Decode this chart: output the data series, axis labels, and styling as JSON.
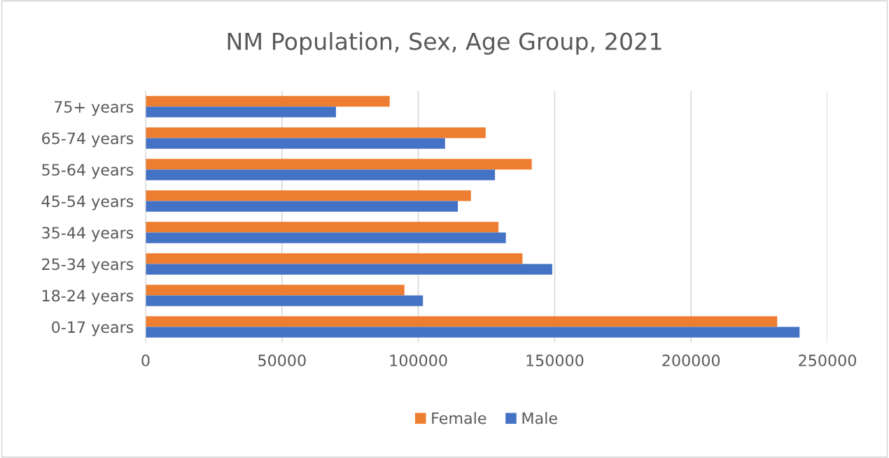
{
  "chart_data": {
    "type": "bar",
    "orientation": "horizontal",
    "title": "NM Population, Sex, Age Group, 2021",
    "categories": [
      "75+ years",
      "65-74 years",
      "55-64 years",
      "45-54 years",
      "35-44 years",
      "25-34 years",
      "18-24 years",
      "0-17 years"
    ],
    "series": [
      {
        "name": "Female",
        "color": "#ed7d31",
        "values": [
          89500,
          124700,
          141600,
          119300,
          129400,
          138200,
          94900,
          231600
        ]
      },
      {
        "name": "Male",
        "color": "#4472c4",
        "values": [
          69800,
          109800,
          128100,
          114500,
          132100,
          149100,
          101700,
          239800
        ]
      }
    ],
    "xlim": [
      0,
      250000
    ],
    "xticks": [
      0,
      50000,
      100000,
      150000,
      200000,
      250000
    ],
    "grid": "x",
    "legend": "bottom"
  }
}
